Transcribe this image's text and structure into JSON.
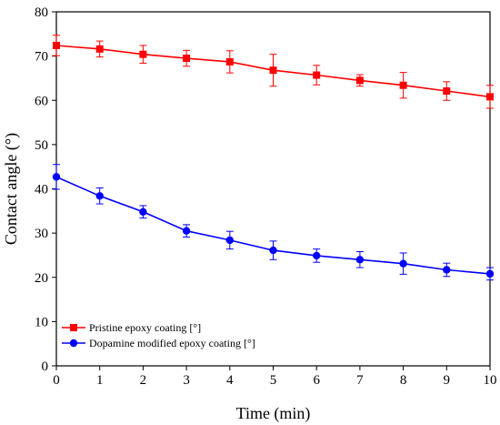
{
  "chart_data": {
    "type": "line",
    "xlabel": "Time (min)",
    "ylabel": "Contact angle (°)",
    "x": [
      0,
      1,
      2,
      3,
      4,
      5,
      6,
      7,
      8,
      9,
      10
    ],
    "xlim": [
      0,
      10
    ],
    "ylim": [
      0,
      80
    ],
    "xticks": [
      0,
      1,
      2,
      3,
      4,
      5,
      6,
      7,
      8,
      9,
      10
    ],
    "yticks": [
      0,
      10,
      20,
      30,
      40,
      50,
      60,
      70,
      80
    ],
    "grid": false,
    "legend_position": "bottom-left",
    "series": [
      {
        "name": "Pristine epoxy coating [°]",
        "color": "#ff0000",
        "marker": "square",
        "values": [
          72.4,
          71.6,
          70.4,
          69.5,
          68.7,
          66.8,
          65.7,
          64.5,
          63.4,
          62.1,
          60.8
        ],
        "errors": [
          2.3,
          1.8,
          2.0,
          1.8,
          2.5,
          3.6,
          2.2,
          1.3,
          2.9,
          2.1,
          2.6
        ]
      },
      {
        "name": "Dopamine modified epoxy coating [°]",
        "color": "#0000ff",
        "marker": "circle",
        "values": [
          42.7,
          38.4,
          34.8,
          30.5,
          28.4,
          26.1,
          24.9,
          24.0,
          23.1,
          21.7,
          20.8
        ],
        "errors": [
          2.8,
          1.8,
          1.4,
          1.4,
          2.0,
          2.1,
          1.5,
          1.8,
          2.4,
          1.5,
          1.4
        ]
      }
    ]
  }
}
